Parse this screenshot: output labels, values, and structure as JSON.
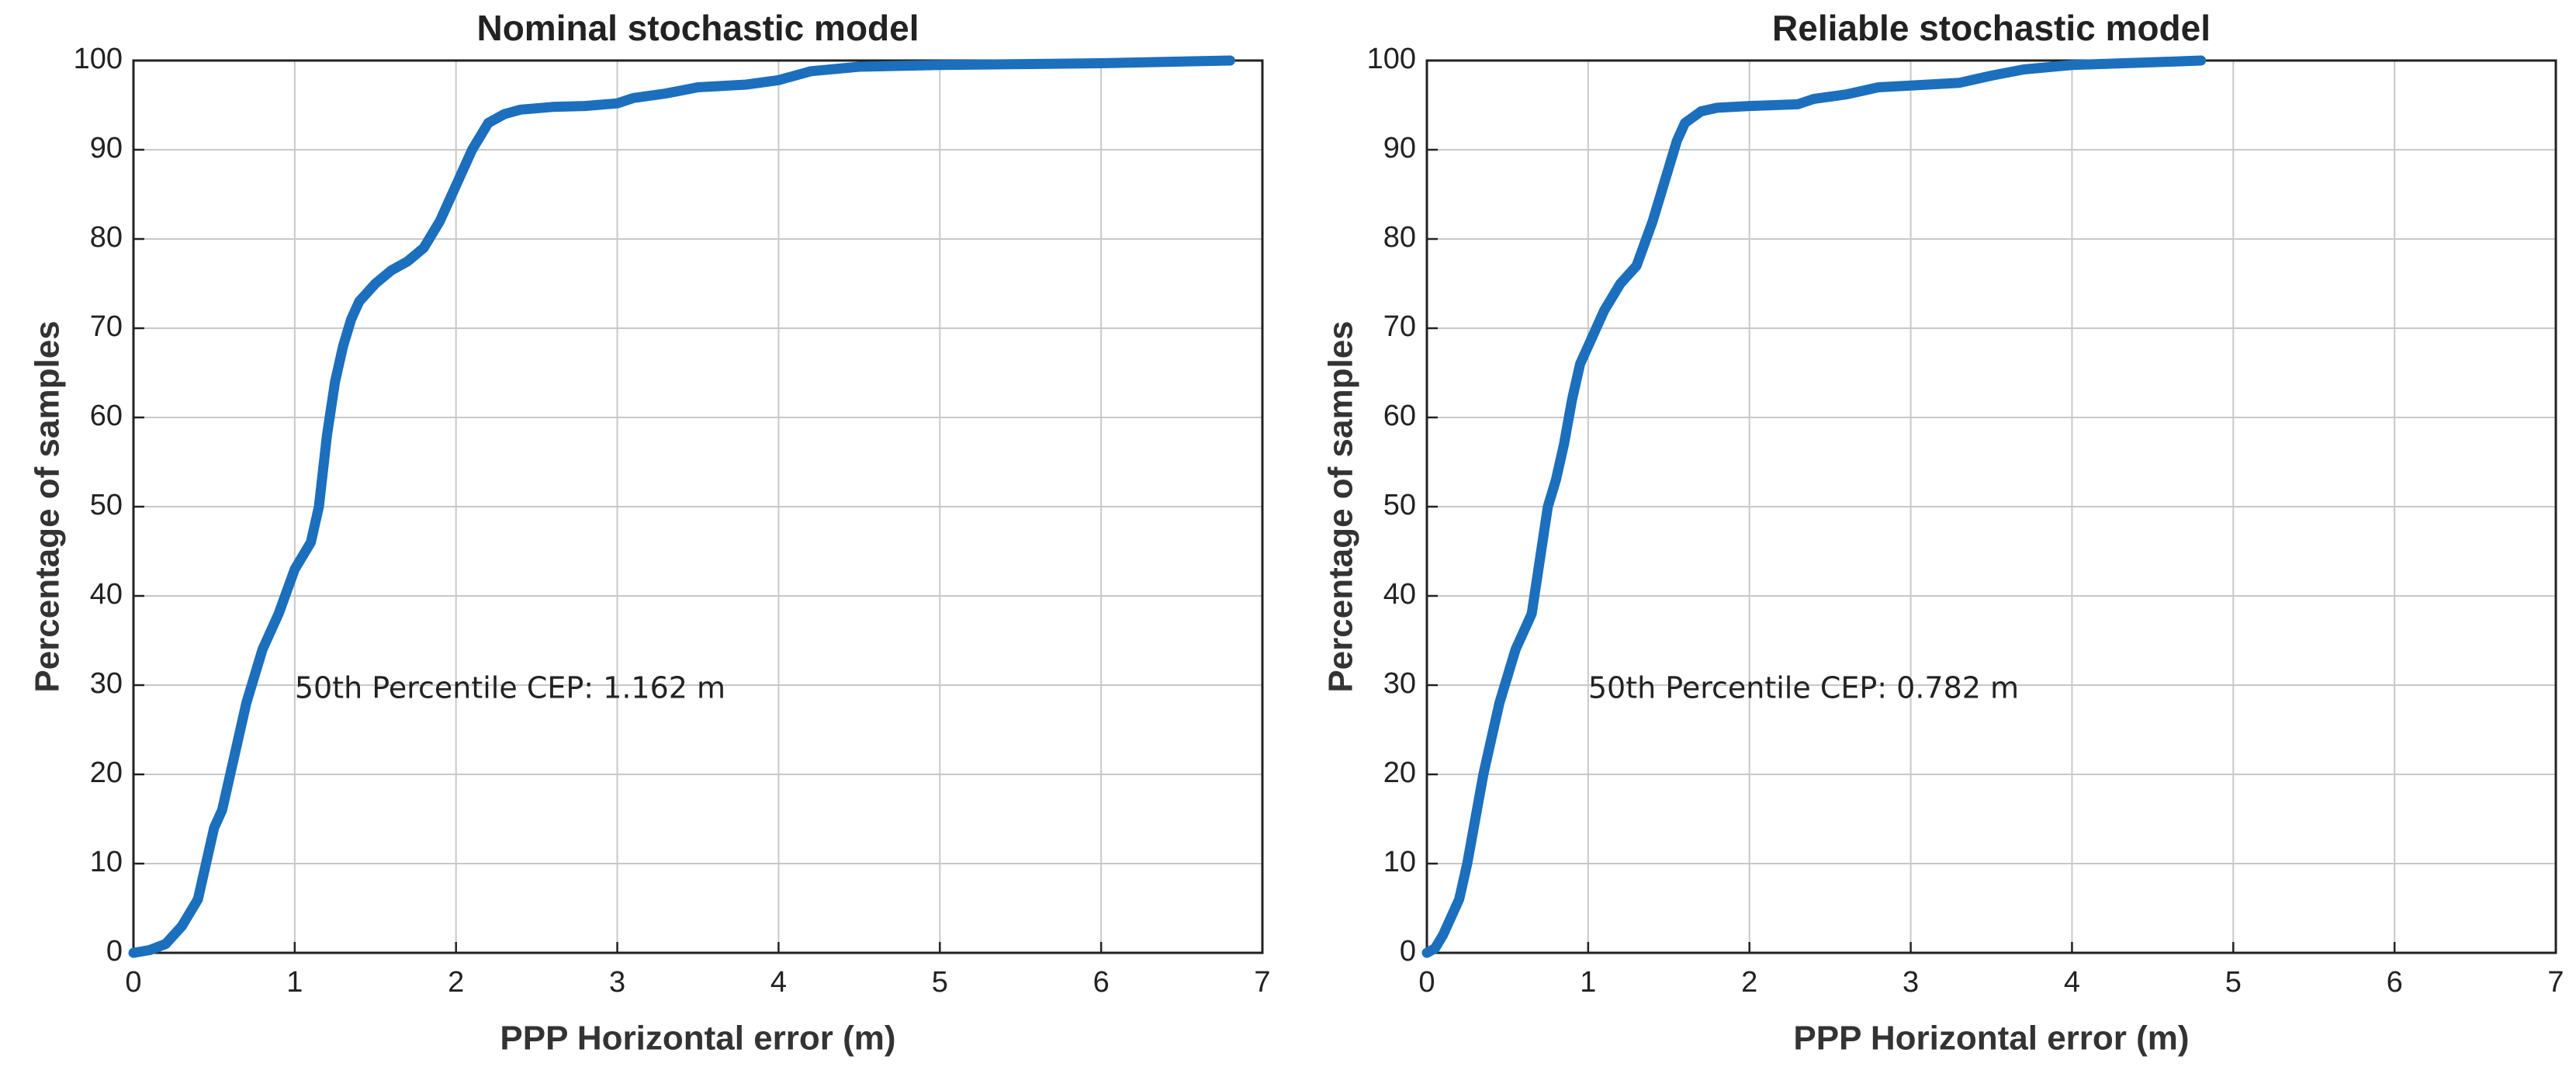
{
  "chart_data": [
    {
      "type": "line",
      "title": "Nominal stochastic model",
      "xlabel": "PPP Horizontal error (m)",
      "ylabel": "Percentage of samples",
      "annotation": "50th Percentile CEP: 1.162 m",
      "x": [
        0,
        0.1,
        0.2,
        0.3,
        0.4,
        0.45,
        0.5,
        0.55,
        0.6,
        0.65,
        0.7,
        0.75,
        0.8,
        0.9,
        1.0,
        1.1,
        1.15,
        1.2,
        1.25,
        1.3,
        1.35,
        1.4,
        1.5,
        1.6,
        1.7,
        1.8,
        1.9,
        2.0,
        2.1,
        2.2,
        2.3,
        2.4,
        2.6,
        2.8,
        3.0,
        3.1,
        3.3,
        3.5,
        3.8,
        4.0,
        4.2,
        4.5,
        5.0,
        6.0,
        6.8
      ],
      "values": [
        0,
        0.3,
        1,
        3,
        6,
        10,
        14,
        16,
        20,
        24,
        28,
        31,
        34,
        38,
        43,
        46,
        50,
        58,
        64,
        68,
        71,
        73,
        75,
        76.5,
        77.5,
        79,
        82,
        86,
        90,
        93,
        94,
        94.5,
        94.8,
        94.9,
        95.2,
        95.8,
        96.3,
        97,
        97.3,
        97.8,
        98.8,
        99.3,
        99.5,
        99.7,
        100
      ],
      "color": "#1b6fbd",
      "xlim": [
        0,
        7
      ],
      "ylim": [
        0,
        100
      ],
      "xticks": [
        0,
        1,
        2,
        3,
        4,
        5,
        6,
        7
      ],
      "yticks": [
        0,
        10,
        20,
        30,
        40,
        50,
        60,
        70,
        80,
        90,
        100
      ],
      "grid": true
    },
    {
      "type": "line",
      "title": "Reliable stochastic model",
      "xlabel": "PPP Horizontal error (m)",
      "ylabel": "Percentage of samples",
      "annotation": "50th Percentile CEP: 0.782 m",
      "x": [
        0,
        0.05,
        0.1,
        0.15,
        0.2,
        0.25,
        0.3,
        0.35,
        0.4,
        0.45,
        0.5,
        0.55,
        0.6,
        0.65,
        0.7,
        0.75,
        0.8,
        0.85,
        0.9,
        0.95,
        1.0,
        1.1,
        1.2,
        1.3,
        1.4,
        1.5,
        1.55,
        1.6,
        1.7,
        1.8,
        2.0,
        2.3,
        2.4,
        2.6,
        2.8,
        3.0,
        3.3,
        3.5,
        3.7,
        4.0,
        4.5,
        4.8
      ],
      "values": [
        0,
        0.5,
        2,
        4,
        6,
        10,
        15,
        20,
        24,
        28,
        31,
        34,
        36,
        38,
        44,
        50,
        53,
        57,
        62,
        66,
        68,
        72,
        75,
        77,
        82,
        88,
        91,
        93,
        94.3,
        94.7,
        94.9,
        95.1,
        95.7,
        96.2,
        97,
        97.2,
        97.5,
        98.3,
        99,
        99.5,
        99.8,
        100
      ],
      "color": "#1b6fbd",
      "xlim": [
        0,
        7
      ],
      "ylim": [
        0,
        100
      ],
      "xticks": [
        0,
        1,
        2,
        3,
        4,
        5,
        6,
        7
      ],
      "yticks": [
        0,
        10,
        20,
        30,
        40,
        50,
        60,
        70,
        80,
        90,
        100
      ],
      "grid": true
    }
  ]
}
